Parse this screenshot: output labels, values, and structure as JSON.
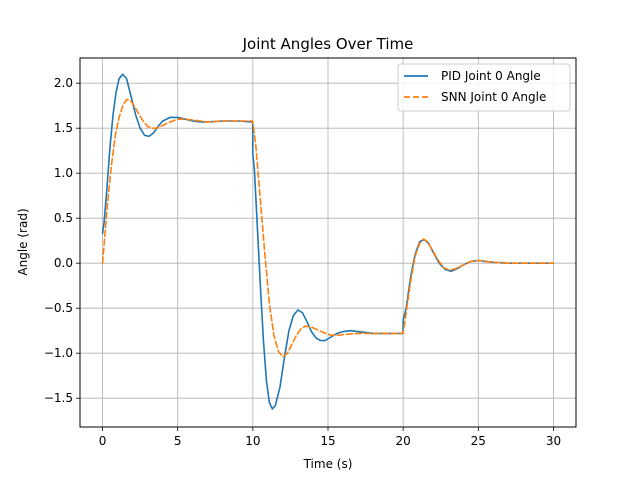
{
  "chart_data": {
    "type": "line",
    "title": "Joint Angles Over Time",
    "xlabel": "Time (s)",
    "ylabel": "Angle (rad)",
    "xlim": [
      -1.5,
      31.5
    ],
    "ylim": [
      -1.82,
      2.28
    ],
    "xticks": [
      0,
      5,
      10,
      15,
      20,
      25,
      30
    ],
    "xtick_labels": [
      "0",
      "5",
      "10",
      "15",
      "20",
      "25",
      "30"
    ],
    "yticks": [
      -1.5,
      -1.0,
      -0.5,
      0.0,
      0.5,
      1.0,
      1.5,
      2.0
    ],
    "ytick_labels": [
      "−1.5",
      "−1.0",
      "−0.5",
      "0.0",
      "0.5",
      "1.0",
      "1.5",
      "2.0"
    ],
    "grid": true,
    "legend_position": "top-right",
    "series": [
      {
        "name": "PID Joint 0 Angle",
        "color": "#1f77b4",
        "style": "solid",
        "points": [
          [
            0,
            0.33
          ],
          [
            0.1,
            0.45
          ],
          [
            0.3,
            0.85
          ],
          [
            0.5,
            1.3
          ],
          [
            0.7,
            1.65
          ],
          [
            0.9,
            1.9
          ],
          [
            1.1,
            2.05
          ],
          [
            1.35,
            2.1
          ],
          [
            1.6,
            2.05
          ],
          [
            1.9,
            1.85
          ],
          [
            2.2,
            1.65
          ],
          [
            2.5,
            1.5
          ],
          [
            2.8,
            1.42
          ],
          [
            3.1,
            1.41
          ],
          [
            3.4,
            1.45
          ],
          [
            3.7,
            1.52
          ],
          [
            4.0,
            1.58
          ],
          [
            4.5,
            1.62
          ],
          [
            5.0,
            1.62
          ],
          [
            5.5,
            1.6
          ],
          [
            6.0,
            1.58
          ],
          [
            6.5,
            1.57
          ],
          [
            7.0,
            1.57
          ],
          [
            8.0,
            1.58
          ],
          [
            9.0,
            1.58
          ],
          [
            9.99,
            1.57
          ],
          [
            10.0,
            1.2
          ],
          [
            10.1,
            1.05
          ],
          [
            10.3,
            0.4
          ],
          [
            10.5,
            -0.25
          ],
          [
            10.7,
            -0.85
          ],
          [
            10.9,
            -1.3
          ],
          [
            11.1,
            -1.55
          ],
          [
            11.3,
            -1.62
          ],
          [
            11.5,
            -1.58
          ],
          [
            11.8,
            -1.38
          ],
          [
            12.1,
            -1.05
          ],
          [
            12.4,
            -0.75
          ],
          [
            12.7,
            -0.58
          ],
          [
            13.0,
            -0.52
          ],
          [
            13.3,
            -0.55
          ],
          [
            13.6,
            -0.65
          ],
          [
            13.9,
            -0.76
          ],
          [
            14.2,
            -0.83
          ],
          [
            14.5,
            -0.86
          ],
          [
            14.8,
            -0.86
          ],
          [
            15.2,
            -0.82
          ],
          [
            15.6,
            -0.78
          ],
          [
            16.0,
            -0.76
          ],
          [
            16.5,
            -0.75
          ],
          [
            17.0,
            -0.76
          ],
          [
            18.0,
            -0.78
          ],
          [
            19.0,
            -0.78
          ],
          [
            19.99,
            -0.78
          ],
          [
            20.0,
            -0.63
          ],
          [
            20.2,
            -0.5
          ],
          [
            20.5,
            -0.15
          ],
          [
            20.8,
            0.1
          ],
          [
            21.1,
            0.24
          ],
          [
            21.4,
            0.26
          ],
          [
            21.7,
            0.22
          ],
          [
            22.0,
            0.12
          ],
          [
            22.4,
            0.0
          ],
          [
            22.8,
            -0.07
          ],
          [
            23.2,
            -0.09
          ],
          [
            23.6,
            -0.06
          ],
          [
            24.0,
            -0.02
          ],
          [
            24.5,
            0.02
          ],
          [
            25.0,
            0.03
          ],
          [
            25.5,
            0.02
          ],
          [
            26.0,
            0.01
          ],
          [
            27.0,
            0.0
          ],
          [
            28.0,
            0.0
          ],
          [
            29.0,
            0.0
          ],
          [
            30.0,
            0.0
          ]
        ]
      },
      {
        "name": "SNN Joint 0 Angle",
        "color": "#ff7f0e",
        "style": "dashed",
        "points": [
          [
            0,
            0.0
          ],
          [
            0.15,
            0.3
          ],
          [
            0.35,
            0.7
          ],
          [
            0.6,
            1.1
          ],
          [
            0.85,
            1.42
          ],
          [
            1.1,
            1.62
          ],
          [
            1.35,
            1.75
          ],
          [
            1.6,
            1.82
          ],
          [
            1.85,
            1.81
          ],
          [
            2.1,
            1.75
          ],
          [
            2.4,
            1.66
          ],
          [
            2.7,
            1.58
          ],
          [
            3.0,
            1.52
          ],
          [
            3.3,
            1.5
          ],
          [
            3.6,
            1.5
          ],
          [
            4.0,
            1.53
          ],
          [
            4.5,
            1.57
          ],
          [
            5.0,
            1.6
          ],
          [
            5.5,
            1.6
          ],
          [
            6.0,
            1.59
          ],
          [
            7.0,
            1.57
          ],
          [
            8.0,
            1.58
          ],
          [
            9.0,
            1.58
          ],
          [
            9.99,
            1.58
          ],
          [
            10.0,
            1.57
          ],
          [
            10.2,
            1.3
          ],
          [
            10.5,
            0.7
          ],
          [
            10.8,
            0.1
          ],
          [
            11.1,
            -0.45
          ],
          [
            11.4,
            -0.8
          ],
          [
            11.7,
            -0.98
          ],
          [
            12.0,
            -1.04
          ],
          [
            12.3,
            -1.0
          ],
          [
            12.6,
            -0.9
          ],
          [
            12.9,
            -0.8
          ],
          [
            13.2,
            -0.73
          ],
          [
            13.5,
            -0.7
          ],
          [
            13.9,
            -0.71
          ],
          [
            14.3,
            -0.74
          ],
          [
            14.7,
            -0.77
          ],
          [
            15.2,
            -0.8
          ],
          [
            15.7,
            -0.8
          ],
          [
            16.2,
            -0.79
          ],
          [
            17.0,
            -0.78
          ],
          [
            18.0,
            -0.78
          ],
          [
            19.0,
            -0.78
          ],
          [
            19.99,
            -0.78
          ],
          [
            20.0,
            -0.78
          ],
          [
            20.2,
            -0.55
          ],
          [
            20.5,
            -0.2
          ],
          [
            20.8,
            0.08
          ],
          [
            21.1,
            0.22
          ],
          [
            21.35,
            0.27
          ],
          [
            21.6,
            0.24
          ],
          [
            21.9,
            0.16
          ],
          [
            22.3,
            0.04
          ],
          [
            22.7,
            -0.05
          ],
          [
            23.1,
            -0.08
          ],
          [
            23.5,
            -0.06
          ],
          [
            24.0,
            -0.02
          ],
          [
            24.5,
            0.02
          ],
          [
            25.0,
            0.03
          ],
          [
            25.5,
            0.02
          ],
          [
            26.0,
            0.01
          ],
          [
            27.0,
            0.0
          ],
          [
            28.0,
            0.0
          ],
          [
            29.0,
            0.0
          ],
          [
            30.0,
            0.0
          ]
        ]
      }
    ]
  }
}
